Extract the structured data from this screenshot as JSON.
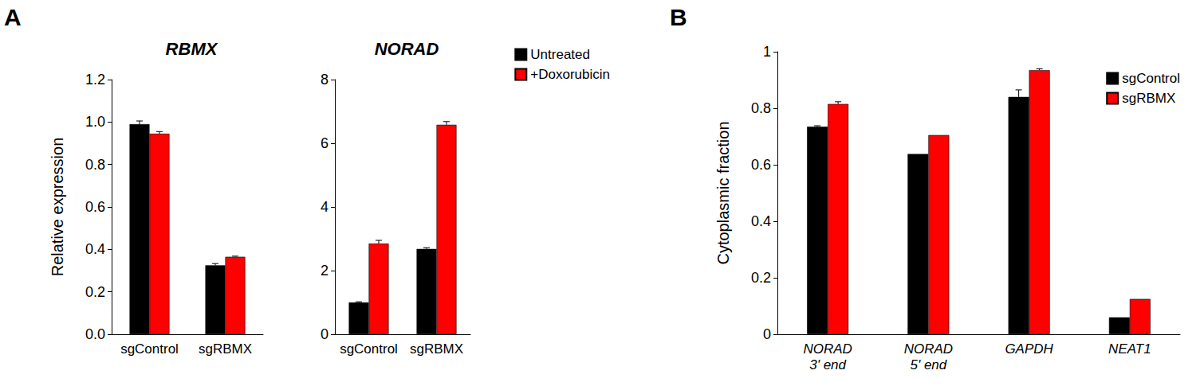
{
  "chart_data": [
    {
      "type": "bar",
      "annotations": [
        "A"
      ],
      "title": "RBMX",
      "y_label": "Relative expression",
      "categories": [
        "sgControl",
        "sgRBMX"
      ],
      "series": [
        {
          "name": "Untreated",
          "color": "#000000",
          "values": [
            0.99,
            0.325
          ],
          "errors": [
            0.015,
            0.008
          ]
        },
        {
          "name": "+Doxorubicin",
          "color": "#ff0000",
          "values": [
            0.945,
            0.365
          ],
          "errors": [
            0.01,
            0.003
          ]
        }
      ],
      "ylim": [
        0,
        1.2
      ],
      "yticks": [
        {
          "value": 0,
          "label": "0.0"
        },
        0.2,
        0.4,
        0.6,
        0.8,
        {
          "value": 1,
          "label": "1.0"
        },
        1.2
      ],
      "grid": false
    },
    {
      "type": "bar",
      "title": "NORAD",
      "categories": [
        "sgControl",
        "sgRBMX"
      ],
      "series": [
        {
          "name": "Untreated",
          "color": "#000000",
          "values": [
            1.0,
            2.68
          ],
          "errors": [
            0.02,
            0.04
          ]
        },
        {
          "name": "+Doxorubicin",
          "color": "#ff0000",
          "values": [
            2.85,
            6.58
          ],
          "errors": [
            0.1,
            0.1
          ]
        }
      ],
      "ylim": [
        0,
        8
      ],
      "yticks": [
        0,
        2,
        4,
        6,
        8
      ],
      "grid": false,
      "legend": "right"
    },
    {
      "type": "bar",
      "annotations": [
        "B"
      ],
      "y_label": "Cytoplasmic fraction",
      "categories": [
        "NORAD\n3' end",
        "NORAD\n5' end",
        "GAPDH",
        "NEAT1"
      ],
      "series": [
        {
          "name": "sgControl",
          "color": "#000000",
          "values": [
            0.735,
            0.638,
            0.84,
            0.06
          ],
          "errors": [
            0.003,
            0,
            0.025,
            0
          ]
        },
        {
          "name": "sgRBMX",
          "color": "#ff0000",
          "values": [
            0.815,
            0.705,
            0.935,
            0.125
          ],
          "errors": [
            0.008,
            0,
            0.005,
            0
          ]
        }
      ],
      "ylim": [
        0,
        1
      ],
      "yticks": [
        0,
        0.2,
        0.4,
        0.6,
        0.8,
        1
      ],
      "grid": false,
      "legend": "upper right"
    }
  ]
}
